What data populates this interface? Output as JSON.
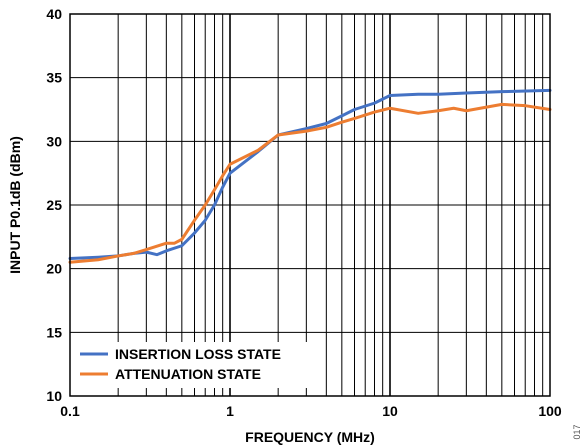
{
  "chart_data": {
    "type": "line",
    "xlabel": "FREQUENCY (MHz)",
    "ylabel": "INPUT P0.1dB (dBm)",
    "x_scale": "log",
    "xlim": [
      0.1,
      100
    ],
    "ylim": [
      10,
      40
    ],
    "x_ticks": [
      0.1,
      1,
      10,
      100
    ],
    "x_tick_labels": [
      "0.1",
      "1",
      "10",
      "100"
    ],
    "y_ticks": [
      10,
      15,
      20,
      25,
      30,
      35,
      40
    ],
    "y_tick_labels": [
      "10",
      "15",
      "20",
      "25",
      "30",
      "35",
      "40"
    ],
    "grid": true,
    "legend_position": "bottom-left",
    "figure_id": "017",
    "series": [
      {
        "name": "INSERTION LOSS STATE",
        "color": "#4472c4",
        "x": [
          0.1,
          0.15,
          0.2,
          0.25,
          0.3,
          0.35,
          0.4,
          0.5,
          0.6,
          0.7,
          0.8,
          0.9,
          1,
          1.5,
          2,
          3,
          4,
          5,
          6,
          8,
          10,
          15,
          20,
          30,
          50,
          100
        ],
        "y": [
          20.8,
          20.9,
          21.0,
          21.2,
          21.3,
          21.1,
          21.4,
          21.8,
          22.8,
          23.8,
          25.0,
          26.4,
          27.5,
          29.2,
          30.5,
          31.0,
          31.4,
          32.0,
          32.5,
          33.0,
          33.6,
          33.7,
          33.7,
          33.8,
          33.9,
          34.0
        ]
      },
      {
        "name": "ATTENUATION STATE",
        "color": "#ed7d31",
        "x": [
          0.1,
          0.15,
          0.2,
          0.25,
          0.3,
          0.4,
          0.45,
          0.5,
          0.6,
          0.7,
          0.8,
          0.9,
          1,
          1.5,
          2,
          3,
          4,
          5,
          6,
          8,
          10,
          15,
          20,
          25,
          30,
          50,
          70,
          100
        ],
        "y": [
          20.5,
          20.7,
          21.0,
          21.2,
          21.5,
          22.0,
          22.0,
          22.3,
          23.8,
          25.0,
          26.2,
          27.3,
          28.2,
          29.3,
          30.5,
          30.8,
          31.1,
          31.5,
          31.8,
          32.3,
          32.6,
          32.2,
          32.4,
          32.6,
          32.4,
          32.9,
          32.8,
          32.5
        ]
      }
    ]
  }
}
